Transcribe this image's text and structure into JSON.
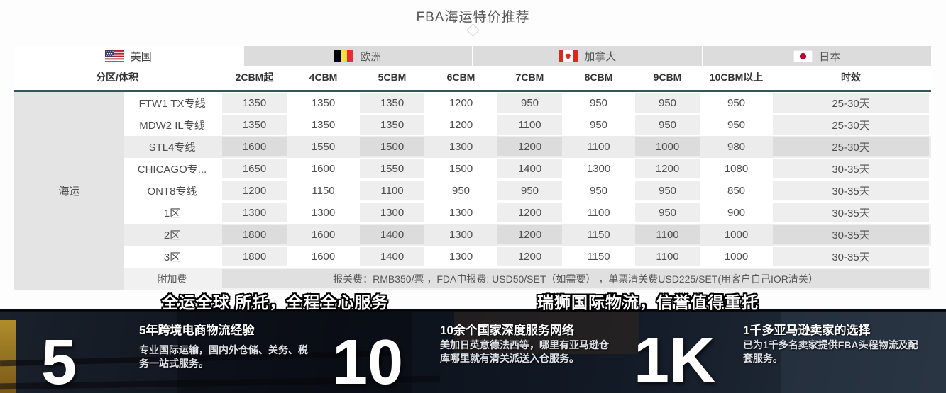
{
  "page": {
    "title": "FBA海运特价推荐"
  },
  "colors": {
    "header_rule": "#35565e",
    "tab_active_bg": "#ffffff",
    "tab_inactive_bg": "#dcdcdc",
    "footer_bg": "#0c111a",
    "canada_red": "#d52b1e",
    "japan_red": "#bc002d",
    "belgium_yellow": "#fae042",
    "belgium_red": "#ed2939"
  },
  "tabs": [
    {
      "label": "美国",
      "flag": "us-flag",
      "active": true
    },
    {
      "label": "欧洲",
      "flag": "belgium-flag",
      "active": false
    },
    {
      "label": "加拿大",
      "flag": "canada-flag",
      "active": false
    },
    {
      "label": "日本",
      "flag": "japan-flag",
      "active": false
    }
  ],
  "table": {
    "side_label": "海运",
    "columns": [
      "分区/体积",
      "2CBM起",
      "4CBM",
      "5CBM",
      "6CBM",
      "7CBM",
      "8CBM",
      "9CBM",
      "10CBM以上",
      "时效"
    ],
    "rows": [
      {
        "label": "FTW1 TX专线",
        "highlight": false,
        "values": [
          "1350",
          "1350",
          "1350",
          "1200",
          "950",
          "950",
          "950",
          "950",
          "25-30天"
        ]
      },
      {
        "label": "MDW2 IL专线",
        "highlight": false,
        "values": [
          "1350",
          "1350",
          "1350",
          "1200",
          "1100",
          "950",
          "950",
          "950",
          "25-30天"
        ]
      },
      {
        "label": "STL4专线",
        "highlight": true,
        "values": [
          "1600",
          "1550",
          "1500",
          "1300",
          "1200",
          "1100",
          "1000",
          "980",
          "25-30天"
        ]
      },
      {
        "label": "CHICAGO专...",
        "highlight": false,
        "values": [
          "1650",
          "1600",
          "1550",
          "1500",
          "1400",
          "1300",
          "1200",
          "1080",
          "30-35天"
        ]
      },
      {
        "label": "ONT8专线",
        "highlight": false,
        "values": [
          "1200",
          "1150",
          "1100",
          "950",
          "950",
          "950",
          "950",
          "850",
          "30-35天"
        ]
      },
      {
        "label": "1区",
        "highlight": false,
        "values": [
          "1300",
          "1300",
          "1300",
          "1300",
          "1200",
          "1100",
          "950",
          "900",
          "30-35天"
        ]
      },
      {
        "label": "2区",
        "highlight": true,
        "values": [
          "1800",
          "1600",
          "1400",
          "1300",
          "1200",
          "1150",
          "1100",
          "1000",
          "30-35天"
        ]
      },
      {
        "label": "3区",
        "highlight": false,
        "values": [
          "1800",
          "1600",
          "1400",
          "1300",
          "1200",
          "1150",
          "1100",
          "1000",
          "30-35天"
        ]
      }
    ],
    "surcharge_label": "附加费",
    "surcharge_text": "报关费：RMB350/票 ，FDA申报费: USD50/SET（如需要） ，单票清关费USD225/SET(用客户自己IOR清关）"
  },
  "slogans": [
    "全运全球 所托，全程全心服务",
    "瑞狮国际物流，信誉值得重托"
  ],
  "stats": [
    {
      "number": "5",
      "title": "5年跨境电商物流经验",
      "desc": "专业国际运输，国内外仓储、关务、税务一站式服务。"
    },
    {
      "number": "10",
      "title": "10余个国家深度服务网络",
      "desc": "美加日英意德法西等，哪里有亚马逊仓库哪里就有清关派送入仓服务。"
    },
    {
      "number": "1K",
      "title": "1千多亚马逊卖家的选择",
      "desc": "已为1千多名卖家提供FBA头程物流及配套服务。"
    }
  ]
}
